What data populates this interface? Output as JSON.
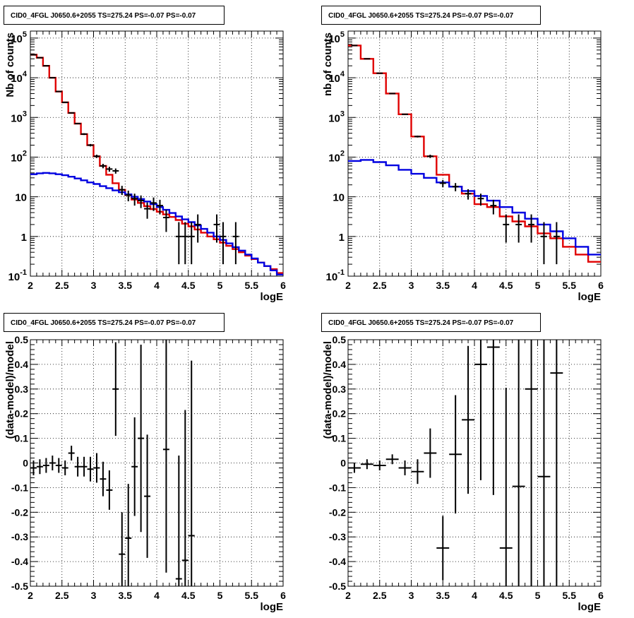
{
  "panels": [
    {
      "title": "CID0_4FGL J0650.6+2055 TS=275.24 PS=-0.07 PS=-0.07",
      "xlabel": "logE",
      "ylabel": "Nb of counts"
    },
    {
      "title": "CID0_4FGL J0650.6+2055 TS=275.24 PS=-0.07 PS=-0.07",
      "xlabel": "logE",
      "ylabel": "nb of counts"
    },
    {
      "title": "CID0_4FGL J0650.6+2055 TS=275.24 PS=-0.07 PS=-0.07",
      "xlabel": "logE",
      "ylabel": "(data-model)/model"
    },
    {
      "title": "CID0_4FGL J0650.6+2055 TS=275.24 PS=-0.07 PS=-0.07",
      "xlabel": "logE",
      "ylabel": "(data-model)/model"
    }
  ],
  "chart_data": [
    {
      "type": "line",
      "title": "CID0_4FGL J0650.6+2055 TS=275.24 PS=-0.07 PS=-0.07",
      "xlabel": "logE",
      "ylabel": "Nb of counts",
      "xlim": [
        2,
        6
      ],
      "ylim": [
        0.1,
        150000
      ],
      "yscale": "log",
      "grid": true,
      "x_ticks": [
        "2",
        "2.5",
        "3",
        "3.5",
        "4",
        "4.5",
        "5",
        "5.5",
        "6"
      ],
      "y_ticks": [
        "10^-1",
        "1",
        "10",
        "10^2",
        "10^3",
        "10^4",
        "10^5"
      ],
      "bin_edges": [
        2.0,
        2.1,
        2.2,
        2.3,
        2.4,
        2.5,
        2.6,
        2.7,
        2.8,
        2.9,
        3.0,
        3.1,
        3.2,
        3.3,
        3.4,
        3.5,
        3.6,
        3.7,
        3.8,
        3.9,
        4.0,
        4.1,
        4.2,
        4.3,
        4.4,
        4.5,
        4.6,
        4.7,
        4.8,
        4.9,
        5.0,
        5.1,
        5.2,
        5.3,
        5.4,
        5.5,
        5.6,
        5.7,
        5.8,
        5.9,
        6.0
      ],
      "series": [
        {
          "color": "#e00000",
          "style": "step",
          "values": [
            38000,
            32000,
            20000,
            10000,
            4500,
            2400,
            1300,
            700,
            380,
            200,
            105,
            60,
            36,
            22,
            15,
            11,
            8.5,
            7,
            5.8,
            4.9,
            4.2,
            3.6,
            3.1,
            2.6,
            2.1,
            1.8,
            1.5,
            1.25,
            1.0,
            0.85,
            0.7,
            0.58,
            0.48,
            0.4,
            0.33,
            0.27,
            0.22,
            0.18,
            0.15,
            0.12
          ]
        },
        {
          "color": "#0000e0",
          "style": "step",
          "values": [
            37,
            39,
            40,
            39,
            37,
            35,
            32,
            29,
            26,
            23,
            21,
            18.5,
            16.5,
            14.5,
            13,
            11.5,
            10,
            8.8,
            7.6,
            6.5,
            5.5,
            4.7,
            3.9,
            3.2,
            2.7,
            2.3,
            1.9,
            1.55,
            1.25,
            1.0,
            0.82,
            0.67,
            0.54,
            0.44,
            0.35,
            0.28,
            0.22,
            0.18,
            0.14,
            0.11
          ]
        }
      ],
      "data_points": {
        "x": [
          2.05,
          2.15,
          2.25,
          2.35,
          2.45,
          2.55,
          2.65,
          2.75,
          2.85,
          2.95,
          3.05,
          3.15,
          3.25,
          3.35,
          3.45,
          3.55,
          3.65,
          3.75,
          3.85,
          3.95,
          4.05,
          4.15,
          4.35,
          4.45,
          4.55,
          4.65,
          4.95,
          5.05,
          5.25
        ],
        "y": [
          38000,
          32000,
          20000,
          10000,
          4500,
          2400,
          1300,
          700,
          380,
          200,
          105,
          60,
          50,
          45,
          15,
          11,
          9,
          8,
          5,
          7,
          6,
          3,
          1,
          1,
          1,
          2,
          2,
          1,
          1
        ],
        "yerr_low": [
          190,
          180,
          140,
          100,
          67,
          49,
          36,
          26,
          19,
          14,
          10,
          7.7,
          7.1,
          6.7,
          3.9,
          3.3,
          3,
          2.8,
          2.2,
          2.6,
          2.4,
          1.7,
          0.8,
          0.8,
          0.8,
          1.3,
          1.3,
          0.8,
          0.8
        ],
        "yerr_high": [
          190,
          180,
          140,
          100,
          67,
          49,
          36,
          26,
          19,
          14,
          10,
          7.7,
          7.1,
          6.7,
          3.9,
          3.3,
          3,
          2.8,
          2.2,
          2.6,
          2.4,
          1.7,
          1.3,
          1.3,
          1.3,
          1.6,
          1.6,
          1.3,
          1.3
        ]
      }
    },
    {
      "type": "line",
      "title": "CID0_4FGL J0650.6+2055 TS=275.24 PS=-0.07 PS=-0.07",
      "xlabel": "logE",
      "ylabel": "nb of counts",
      "xlim": [
        2,
        6
      ],
      "ylim": [
        0.1,
        150000
      ],
      "yscale": "log",
      "grid": true,
      "x_ticks": [
        "2",
        "2.5",
        "3",
        "3.5",
        "4",
        "4.5",
        "5",
        "5.5",
        "6"
      ],
      "y_ticks": [
        "10^-1",
        "1",
        "10",
        "10^2",
        "10^3",
        "10^4",
        "10^5"
      ],
      "bin_edges": [
        2.0,
        2.2,
        2.4,
        2.6,
        2.8,
        3.0,
        3.2,
        3.4,
        3.6,
        3.8,
        4.0,
        4.2,
        4.4,
        4.6,
        4.8,
        5.0,
        5.2,
        5.4,
        5.6,
        5.8,
        6.0
      ],
      "series": [
        {
          "color": "#e00000",
          "style": "step",
          "values": [
            65000,
            30000,
            13000,
            4000,
            1200,
            330,
            105,
            36,
            18,
            12,
            6.5,
            5.5,
            3.2,
            2.4,
            1.8,
            1.2,
            0.9,
            0.55,
            0.35,
            0.23
          ]
        },
        {
          "color": "#0000e0",
          "style": "step",
          "values": [
            80,
            85,
            75,
            62,
            48,
            38,
            30,
            23,
            18,
            14,
            10.5,
            8,
            5.5,
            4,
            2.8,
            2,
            1.35,
            0.9,
            0.55,
            0.35
          ]
        }
      ],
      "data_points": {
        "x": [
          2.1,
          2.3,
          2.5,
          2.7,
          2.9,
          3.1,
          3.3,
          3.5,
          3.7,
          3.9,
          4.1,
          4.3,
          4.5,
          4.7,
          4.9,
          5.1,
          5.3
        ],
        "y": [
          65000,
          30000,
          13000,
          4000,
          1200,
          330,
          105,
          22,
          18,
          12,
          9,
          6,
          2,
          2,
          2,
          1,
          1
        ],
        "yerr_low": [
          255,
          173,
          114,
          63,
          35,
          18,
          10,
          4.7,
          4.2,
          3.5,
          3,
          2.4,
          1.3,
          1.3,
          1.3,
          0.8,
          0.8
        ],
        "yerr_high": [
          255,
          173,
          114,
          63,
          35,
          18,
          10,
          4.7,
          4.2,
          3.5,
          3,
          2.4,
          1.6,
          1.6,
          1.6,
          1.3,
          1.3
        ]
      }
    },
    {
      "type": "scatter",
      "title": "CID0_4FGL J0650.6+2055 TS=275.24 PS=-0.07 PS=-0.07",
      "xlabel": "logE",
      "ylabel": "(data-model)/model",
      "xlim": [
        2,
        6
      ],
      "ylim": [
        -0.5,
        0.5
      ],
      "grid": true,
      "x_ticks": [
        "2",
        "2.5",
        "3",
        "3.5",
        "4",
        "4.5",
        "5",
        "5.5",
        "6"
      ],
      "y_ticks": [
        "-0.5",
        "-0.4",
        "-0.3",
        "-0.2",
        "-0.1",
        "0",
        "0.1",
        "0.2",
        "0.3",
        "0.4",
        "0.5"
      ],
      "x": [
        2.05,
        2.15,
        2.25,
        2.35,
        2.45,
        2.55,
        2.65,
        2.75,
        2.85,
        2.95,
        3.05,
        3.15,
        3.25,
        3.35,
        3.45,
        3.55,
        3.65,
        3.75,
        3.85,
        4.15,
        4.35,
        4.45,
        4.55
      ],
      "y": [
        -0.02,
        -0.015,
        -0.01,
        0.0,
        -0.01,
        -0.02,
        0.04,
        -0.015,
        -0.015,
        -0.025,
        -0.02,
        -0.065,
        -0.11,
        0.3,
        -0.37,
        -0.305,
        -0.015,
        0.1,
        -0.135,
        0.055,
        -0.47,
        -0.395,
        -0.295
      ],
      "yerr": [
        0.03,
        0.03,
        0.03,
        0.03,
        0.03,
        0.03,
        0.03,
        0.04,
        0.04,
        0.05,
        0.06,
        0.07,
        0.08,
        0.19,
        0.17,
        0.22,
        0.2,
        0.38,
        0.25,
        0.5,
        0.5,
        0.61,
        0.71
      ],
      "xerr": 0.05
    },
    {
      "type": "scatter",
      "title": "CID0_4FGL J0650.6+2055 TS=275.24 PS=-0.07 PS=-0.07",
      "xlabel": "logE",
      "ylabel": "(data-model)/model",
      "xlim": [
        2,
        6
      ],
      "ylim": [
        -0.5,
        0.5
      ],
      "grid": true,
      "x_ticks": [
        "2",
        "2.5",
        "3",
        "3.5",
        "4",
        "4.5",
        "5",
        "5.5",
        "6"
      ],
      "y_ticks": [
        "-0.5",
        "-0.4",
        "-0.3",
        "-0.2",
        "-0.1",
        "0",
        "0.1",
        "0.2",
        "0.3",
        "0.4",
        "0.5"
      ],
      "x": [
        2.1,
        2.3,
        2.5,
        2.7,
        2.9,
        3.1,
        3.3,
        3.5,
        3.7,
        3.9,
        4.1,
        4.3,
        4.5,
        4.7,
        4.9,
        5.1,
        5.3
      ],
      "y": [
        -0.02,
        -0.005,
        -0.01,
        0.015,
        -0.02,
        -0.035,
        0.04,
        -0.345,
        0.035,
        0.175,
        0.4,
        0.47,
        -0.345,
        -0.095,
        0.3,
        -0.055,
        0.365
      ],
      "yerr": [
        0.02,
        0.02,
        0.02,
        0.02,
        0.03,
        0.05,
        0.1,
        0.13,
        0.24,
        0.3,
        0.47,
        0.6,
        0.65,
        0.85,
        0.9,
        1.1,
        1.2
      ],
      "xerr": 0.1
    }
  ]
}
